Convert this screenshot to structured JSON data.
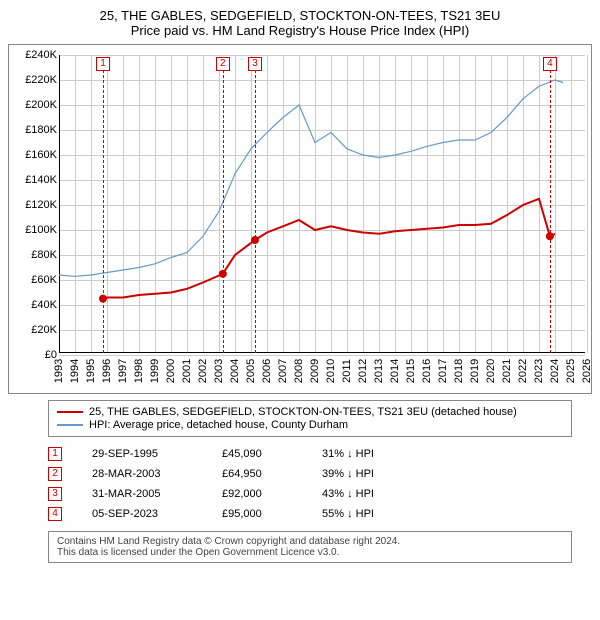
{
  "title": {
    "line1": "25, THE GABLES, SEDGEFIELD, STOCKTON-ON-TEES, TS21 3EU",
    "line2": "Price paid vs. HM Land Registry's House Price Index (HPI)"
  },
  "chart": {
    "type": "line",
    "background_color": "#ffffff",
    "grid_color": "#cccccc",
    "axis_color": "#000000",
    "tick_fontsize": 11,
    "x_years": [
      1993,
      1994,
      1995,
      1996,
      1997,
      1998,
      1999,
      2000,
      2001,
      2002,
      2003,
      2004,
      2005,
      2006,
      2007,
      2008,
      2009,
      2010,
      2011,
      2012,
      2013,
      2014,
      2015,
      2016,
      2017,
      2018,
      2019,
      2020,
      2021,
      2022,
      2023,
      2024,
      2025,
      2026
    ],
    "xlim": [
      1993,
      2026
    ],
    "ylim": [
      0,
      240000
    ],
    "ytick_step": 20000,
    "ytick_labels": [
      "£0",
      "£20K",
      "£40K",
      "£60K",
      "£80K",
      "£100K",
      "£120K",
      "£140K",
      "£160K",
      "£180K",
      "£200K",
      "£220K",
      "£240K"
    ],
    "series": [
      {
        "name": "property",
        "color": "#cc0000",
        "width": 2,
        "points": [
          [
            1995.75,
            45090
          ],
          [
            1996,
            46000
          ],
          [
            1997,
            46000
          ],
          [
            1998,
            48000
          ],
          [
            1999,
            49000
          ],
          [
            2000,
            50000
          ],
          [
            2001,
            53000
          ],
          [
            2002,
            58000
          ],
          [
            2003.24,
            64950
          ],
          [
            2004,
            80000
          ],
          [
            2005.25,
            92000
          ],
          [
            2006,
            98000
          ],
          [
            2007,
            103000
          ],
          [
            2008,
            108000
          ],
          [
            2009,
            100000
          ],
          [
            2010,
            103000
          ],
          [
            2011,
            100000
          ],
          [
            2012,
            98000
          ],
          [
            2013,
            97000
          ],
          [
            2014,
            99000
          ],
          [
            2015,
            100000
          ],
          [
            2016,
            101000
          ],
          [
            2017,
            102000
          ],
          [
            2018,
            104000
          ],
          [
            2019,
            104000
          ],
          [
            2020,
            105000
          ],
          [
            2021,
            112000
          ],
          [
            2022,
            120000
          ],
          [
            2023,
            125000
          ],
          [
            2023.68,
            95000
          ],
          [
            2024,
            97000
          ]
        ],
        "markers": [
          {
            "x": 1995.75,
            "y": 45090
          },
          {
            "x": 2003.24,
            "y": 64950
          },
          {
            "x": 2005.25,
            "y": 92000
          },
          {
            "x": 2023.68,
            "y": 95000
          }
        ]
      },
      {
        "name": "hpi",
        "color": "#6699cc",
        "width": 1.2,
        "points": [
          [
            1993,
            64000
          ],
          [
            1994,
            63000
          ],
          [
            1995,
            64000
          ],
          [
            1996,
            66000
          ],
          [
            1997,
            68000
          ],
          [
            1998,
            70000
          ],
          [
            1999,
            73000
          ],
          [
            2000,
            78000
          ],
          [
            2001,
            82000
          ],
          [
            2002,
            95000
          ],
          [
            2003,
            115000
          ],
          [
            2004,
            145000
          ],
          [
            2005,
            165000
          ],
          [
            2006,
            178000
          ],
          [
            2007,
            190000
          ],
          [
            2008,
            200000
          ],
          [
            2009,
            170000
          ],
          [
            2010,
            178000
          ],
          [
            2011,
            165000
          ],
          [
            2012,
            160000
          ],
          [
            2013,
            158000
          ],
          [
            2014,
            160000
          ],
          [
            2015,
            163000
          ],
          [
            2016,
            167000
          ],
          [
            2017,
            170000
          ],
          [
            2018,
            172000
          ],
          [
            2019,
            172000
          ],
          [
            2020,
            178000
          ],
          [
            2021,
            190000
          ],
          [
            2022,
            205000
          ],
          [
            2023,
            215000
          ],
          [
            2024,
            220000
          ],
          [
            2024.5,
            218000
          ]
        ]
      }
    ],
    "event_markers": [
      {
        "n": "1",
        "x": 1995.75
      },
      {
        "n": "2",
        "x": 2003.24
      },
      {
        "n": "3",
        "x": 2005.25
      },
      {
        "n": "4",
        "x": 2023.68
      }
    ]
  },
  "legend": {
    "items": [
      {
        "color": "#cc0000",
        "label": "25, THE GABLES, SEDGEFIELD, STOCKTON-ON-TEES, TS21 3EU (detached house)"
      },
      {
        "color": "#6699cc",
        "label": "HPI: Average price, detached house, County Durham"
      }
    ]
  },
  "events": [
    {
      "n": "1",
      "date": "29-SEP-1995",
      "price": "£45,090",
      "pct": "31% ↓ HPI"
    },
    {
      "n": "2",
      "date": "28-MAR-2003",
      "price": "£64,950",
      "pct": "39% ↓ HPI"
    },
    {
      "n": "3",
      "date": "31-MAR-2005",
      "price": "£92,000",
      "pct": "43% ↓ HPI"
    },
    {
      "n": "4",
      "date": "05-SEP-2023",
      "price": "£95,000",
      "pct": "55% ↓ HPI"
    }
  ],
  "footer": {
    "line1": "Contains HM Land Registry data © Crown copyright and database right 2024.",
    "line2": "This data is licensed under the Open Government Licence v3.0."
  }
}
